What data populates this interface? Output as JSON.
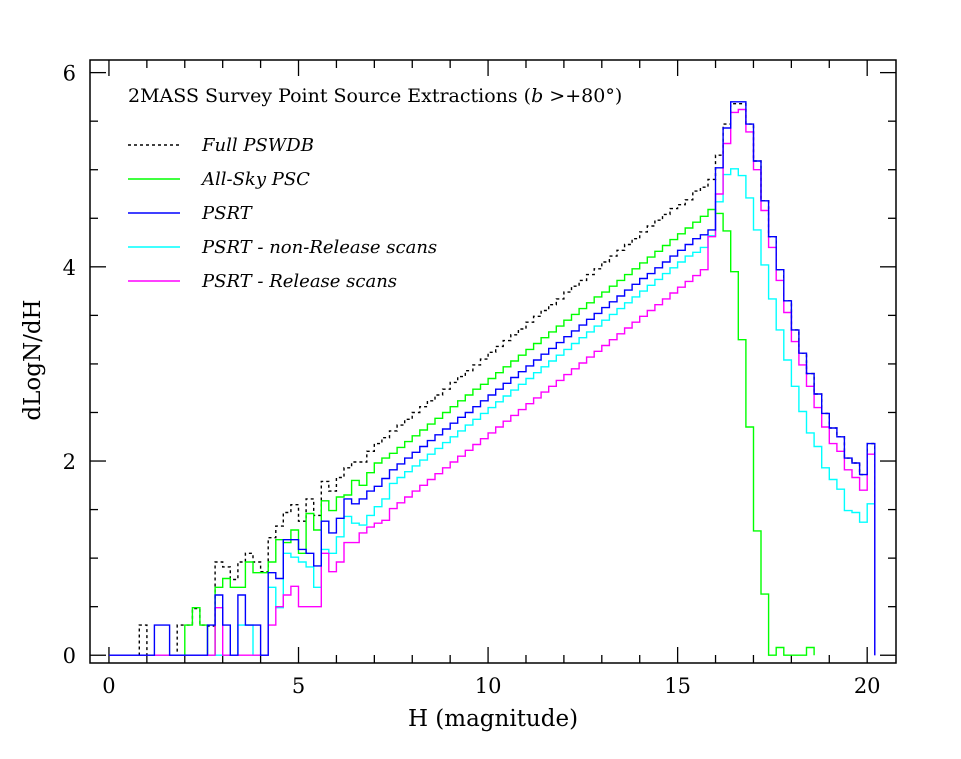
{
  "chart_data": {
    "type": "step-histogram",
    "title_prefix": "2MASS Survey Point Source Extractions (",
    "title_var": "b",
    "title_suffix": " >+80°)",
    "xlabel": "H (magnitude)",
    "ylabel": "dLogN/dH",
    "xlim": [
      -0.5,
      20.76
    ],
    "ylim": [
      -0.08,
      6.13
    ],
    "x_ticks": [
      0,
      5,
      10,
      15,
      20
    ],
    "x_tick_labels": [
      "0",
      "5",
      "10",
      "15",
      "20"
    ],
    "x_minor_step": 1,
    "y_ticks": [
      0,
      2,
      4,
      6
    ],
    "y_tick_labels": [
      "0",
      "2",
      "4",
      "6"
    ],
    "y_minor_step": 0.5,
    "legend_position": "top-left",
    "bin_start": 0,
    "bin_width": 0.2,
    "series": [
      {
        "name": "Full PSWDB",
        "color": "#000000",
        "dashed": true,
        "values": [
          0,
          0,
          0,
          0,
          0.31,
          0,
          0,
          0,
          0,
          0.31,
          0.31,
          0.48,
          0.31,
          0.3,
          0.96,
          0.91,
          0.78,
          0.96,
          1.05,
          0.96,
          0.86,
          1.21,
          1.33,
          1.47,
          1.55,
          1.38,
          1.61,
          1.44,
          1.79,
          1.69,
          1.83,
          1.93,
          1.99,
          1.99,
          2.1,
          2.18,
          2.24,
          2.31,
          2.37,
          2.43,
          2.5,
          2.56,
          2.62,
          2.68,
          2.74,
          2.81,
          2.87,
          2.93,
          2.99,
          3.05,
          3.12,
          3.18,
          3.24,
          3.3,
          3.36,
          3.43,
          3.49,
          3.55,
          3.61,
          3.67,
          3.74,
          3.8,
          3.86,
          3.92,
          3.98,
          4.05,
          4.11,
          4.17,
          4.23,
          4.29,
          4.36,
          4.42,
          4.48,
          4.54,
          4.6,
          4.64,
          4.69,
          4.78,
          4.82,
          4.9,
          5.15,
          5.47,
          5.68,
          5.68,
          5.47,
          5.09,
          4.68,
          4.31,
          3.97,
          3.65,
          3.35,
          3.11,
          2.9,
          2.69,
          2.49,
          2.34,
          2.25,
          2.03,
          1.98,
          1.86,
          2.18
        ]
      },
      {
        "name": "All-Sky PSC",
        "color": "#00ff00",
        "dashed": false,
        "values": [
          0,
          0,
          0,
          0,
          0,
          0,
          0,
          0,
          0,
          0,
          0.31,
          0.49,
          0.31,
          0,
          0.7,
          0.79,
          0.7,
          0.7,
          0.96,
          0.85,
          0.85,
          0.96,
          1.19,
          1.16,
          1.29,
          1.05,
          1.46,
          1.29,
          1.59,
          1.49,
          1.63,
          1.65,
          1.8,
          1.75,
          1.88,
          1.98,
          2.03,
          2.08,
          2.14,
          2.2,
          2.26,
          2.32,
          2.38,
          2.44,
          2.5,
          2.56,
          2.62,
          2.68,
          2.74,
          2.79,
          2.85,
          2.91,
          2.97,
          3.03,
          3.09,
          3.15,
          3.21,
          3.27,
          3.33,
          3.39,
          3.45,
          3.51,
          3.57,
          3.63,
          3.69,
          3.74,
          3.8,
          3.86,
          3.92,
          3.98,
          4.04,
          4.1,
          4.16,
          4.22,
          4.28,
          4.34,
          4.4,
          4.46,
          4.52,
          4.59,
          4.55,
          4.37,
          3.95,
          3.25,
          2.35,
          1.28,
          0.63,
          0,
          0.08,
          0,
          0,
          0,
          0.08,
          null,
          null,
          null,
          null,
          null,
          null,
          null,
          null
        ]
      },
      {
        "name": "PSRT",
        "color": "#0000ff",
        "dashed": false,
        "values": [
          0,
          0,
          0,
          0,
          0,
          0,
          0.31,
          0.31,
          0,
          0,
          0,
          0,
          0,
          0.31,
          0.62,
          0.31,
          0,
          0.62,
          0.31,
          0.31,
          0,
          0.85,
          0.79,
          1.19,
          1.19,
          1.09,
          1.05,
          0.92,
          1.38,
          1.26,
          1.41,
          1.61,
          1.56,
          1.61,
          1.69,
          1.74,
          1.82,
          1.91,
          1.97,
          2.03,
          2.09,
          2.15,
          2.21,
          2.27,
          2.33,
          2.39,
          2.45,
          2.5,
          2.56,
          2.62,
          2.68,
          2.74,
          2.8,
          2.86,
          2.92,
          2.98,
          3.04,
          3.1,
          3.16,
          3.22,
          3.28,
          3.34,
          3.4,
          3.46,
          3.52,
          3.58,
          3.64,
          3.7,
          3.76,
          3.82,
          3.88,
          3.93,
          3.99,
          4.05,
          4.11,
          4.17,
          4.23,
          4.29,
          4.33,
          4.38,
          5.02,
          5.43,
          5.7,
          5.7,
          5.47,
          5.09,
          4.68,
          4.31,
          3.97,
          3.65,
          3.35,
          3.11,
          2.9,
          2.69,
          2.49,
          2.34,
          2.25,
          2.03,
          1.98,
          1.86,
          2.18
        ]
      },
      {
        "name": "PSRT - non-Release scans",
        "color": "#00ffff",
        "dashed": false,
        "values": [
          0,
          0,
          0,
          0,
          0,
          0,
          0,
          0,
          0,
          0,
          0,
          0,
          0,
          0,
          0,
          0,
          0,
          0.31,
          0.31,
          0,
          0,
          0.7,
          0.49,
          1.05,
          1.01,
          0.96,
          0.91,
          0.7,
          1.09,
          1.05,
          1.22,
          1.43,
          1.36,
          1.34,
          1.44,
          1.53,
          1.61,
          1.77,
          1.83,
          1.89,
          1.95,
          2.01,
          2.07,
          2.13,
          2.19,
          2.25,
          2.31,
          2.37,
          2.43,
          2.49,
          2.55,
          2.61,
          2.67,
          2.73,
          2.79,
          2.85,
          2.91,
          2.97,
          3.03,
          3.09,
          3.15,
          3.21,
          3.27,
          3.33,
          3.39,
          3.45,
          3.51,
          3.57,
          3.63,
          3.69,
          3.75,
          3.81,
          3.87,
          3.93,
          3.99,
          4.05,
          4.11,
          4.15,
          4.2,
          4.32,
          4.67,
          4.95,
          5.01,
          4.94,
          4.71,
          4.38,
          4.02,
          3.67,
          3.35,
          3.04,
          2.77,
          2.51,
          2.29,
          2.15,
          1.93,
          1.81,
          1.71,
          1.49,
          1.47,
          1.37,
          1.56
        ]
      },
      {
        "name": "PSRT - Release scans",
        "color": "#ff00ff",
        "dashed": false,
        "values": [
          0,
          0,
          0,
          0,
          0,
          0,
          0,
          0,
          0,
          0,
          0,
          0,
          0,
          0,
          0.49,
          0,
          0,
          0,
          0,
          0,
          0,
          0.31,
          0.5,
          0.62,
          0.71,
          0.5,
          0.5,
          0.5,
          1.05,
          0.86,
          0.96,
          1.16,
          1.16,
          1.26,
          1.32,
          1.36,
          1.39,
          1.51,
          1.57,
          1.63,
          1.69,
          1.75,
          1.81,
          1.87,
          1.93,
          1.99,
          2.05,
          2.11,
          2.17,
          2.23,
          2.29,
          2.35,
          2.41,
          2.47,
          2.53,
          2.59,
          2.65,
          2.71,
          2.77,
          2.83,
          2.89,
          2.95,
          3.01,
          3.07,
          3.13,
          3.19,
          3.25,
          3.31,
          3.37,
          3.43,
          3.49,
          3.55,
          3.61,
          3.67,
          3.73,
          3.79,
          3.85,
          3.91,
          3.97,
          4.31,
          4.75,
          5.27,
          5.59,
          5.62,
          5.39,
          5.0,
          4.58,
          4.2,
          3.86,
          3.53,
          3.23,
          2.99,
          2.77,
          2.55,
          2.35,
          2.18,
          2.1,
          1.91,
          1.83,
          1.7,
          2.07
        ]
      }
    ],
    "draw_order": [
      0,
      1,
      3,
      4,
      2
    ]
  }
}
